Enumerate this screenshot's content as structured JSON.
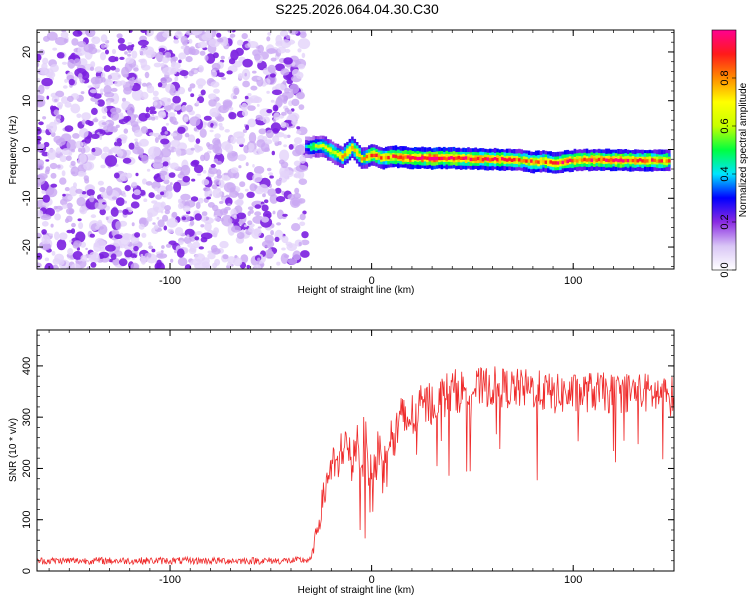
{
  "title": "S225.2026.064.04.30.C30",
  "colors": {
    "noise": "#7b2fd6",
    "snr_line": "#ef2b2b",
    "colormap": [
      "#ffffff",
      "#d9c6f6",
      "#8a2be2",
      "#0000ff",
      "#00e5ff",
      "#00ff40",
      "#c8ff00",
      "#ffff00",
      "#ff8c00",
      "#ff1a1a",
      "#ff0090"
    ]
  },
  "colorbar": {
    "label": "Normalized spectral amplitude",
    "ticks": [
      "0.0",
      "0.2",
      "0.4",
      "0.6",
      "0.8"
    ],
    "tick_values": [
      0.0,
      0.2,
      0.4,
      0.6,
      0.8
    ],
    "range": [
      0,
      1
    ]
  },
  "chart_data": [
    {
      "type": "heatmap",
      "xlabel": "Height of straight line (km)",
      "ylabel": "Frequency (Hz)",
      "xlim": [
        -166,
        150
      ],
      "ylim": [
        -24.5,
        24.5
      ],
      "x_ticks": [
        -100,
        0,
        100
      ],
      "x_tick_labels": [
        "-100",
        "0",
        "100"
      ],
      "y_ticks": [
        -20,
        -10,
        0,
        10,
        20
      ],
      "y_tick_labels": [
        "-20",
        "-10",
        "0",
        "10",
        "20"
      ],
      "noise_region_x": [
        -166,
        -33
      ],
      "signal_track": {
        "x": [
          -33,
          -30,
          -25,
          -20,
          -15,
          -10,
          -5,
          0,
          5,
          10,
          15,
          20,
          30,
          40,
          50,
          60,
          70,
          75,
          80,
          85,
          90,
          95,
          100,
          110,
          120,
          130,
          140,
          148
        ],
        "freq": [
          0.5,
          0.5,
          0.8,
          -0.5,
          -1.5,
          0.5,
          -2.0,
          -1.0,
          -1.8,
          -1.4,
          -1.6,
          -1.7,
          -1.8,
          -1.8,
          -1.9,
          -2.0,
          -2.1,
          -2.3,
          -2.6,
          -2.4,
          -2.8,
          -2.5,
          -2.2,
          -2.1,
          -2.2,
          -2.2,
          -2.3,
          -2.3
        ],
        "amp": [
          0.35,
          0.55,
          0.6,
          0.65,
          0.7,
          0.75,
          0.7,
          0.8,
          0.75,
          0.8,
          0.85,
          0.9,
          0.95,
          0.9,
          0.85,
          0.85,
          0.8,
          0.75,
          0.85,
          0.8,
          0.8,
          0.85,
          0.8,
          0.85,
          0.9,
          0.85,
          0.8,
          0.75
        ]
      }
    },
    {
      "type": "line",
      "xlabel": "Height of straight line (km)",
      "ylabel": "SNR (10 * v/v)",
      "xlim": [
        -166,
        150
      ],
      "ylim": [
        0,
        470
      ],
      "x_ticks": [
        -100,
        0,
        100
      ],
      "x_tick_labels": [
        "-100",
        "0",
        "100"
      ],
      "y_ticks": [
        0,
        100,
        200,
        300,
        400
      ],
      "y_tick_labels": [
        "0",
        "100",
        "200",
        "300",
        "400"
      ],
      "series": [
        {
          "x": [
            -166,
            -150,
            -120,
            -90,
            -60,
            -40,
            -30,
            -25,
            -22,
            -20,
            -17,
            -15,
            -12,
            -10,
            -8,
            -5,
            -3,
            0,
            3,
            5,
            8,
            10,
            12,
            15,
            20,
            25,
            30,
            35,
            40,
            50,
            60,
            70,
            80,
            90,
            100,
            110,
            120,
            130,
            140,
            150
          ],
          "y": [
            20,
            20,
            20,
            20,
            20,
            20,
            22,
            120,
            180,
            210,
            190,
            250,
            240,
            200,
            260,
            230,
            250,
            150,
            240,
            200,
            280,
            240,
            270,
            290,
            300,
            320,
            330,
            340,
            350,
            355,
            360,
            355,
            355,
            345,
            345,
            350,
            345,
            350,
            345,
            340
          ],
          "noise_amp": [
            7,
            7,
            7,
            7,
            7,
            7,
            7,
            30,
            40,
            45,
            45,
            50,
            50,
            55,
            55,
            60,
            60,
            70,
            60,
            65,
            60,
            60,
            55,
            55,
            50,
            45,
            45,
            45,
            45,
            40,
            40,
            40,
            40,
            40,
            40,
            40,
            40,
            40,
            40,
            40
          ]
        }
      ]
    }
  ]
}
